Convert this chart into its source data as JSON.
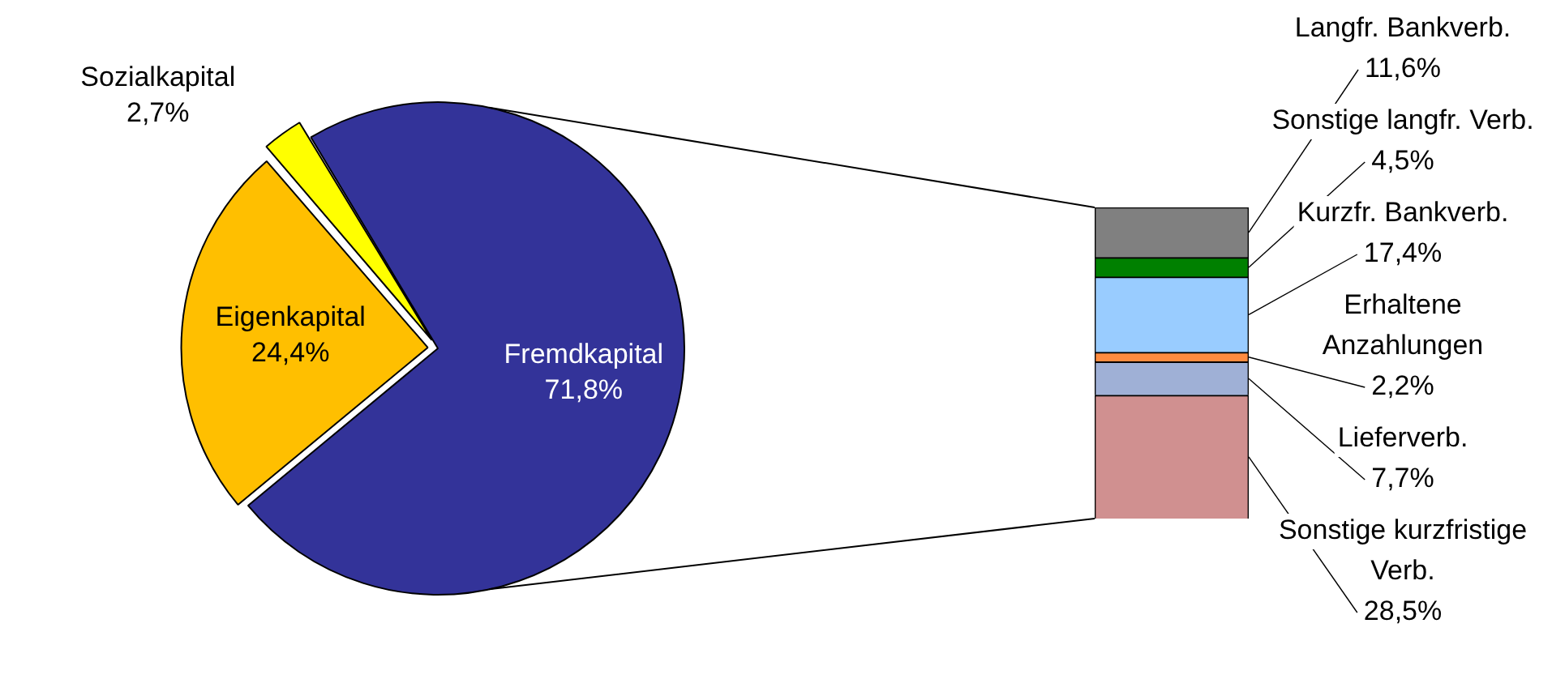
{
  "chart_data": [
    {
      "type": "pie",
      "categories": [
        "Fremdkapital",
        "Eigenkapital",
        "Sozialkapital"
      ],
      "values": [
        71.8,
        24.4,
        2.7
      ],
      "colors": [
        "#333399",
        "#ffbf00",
        "#ffff00"
      ],
      "value_labels": [
        "71,8%",
        "24,4%",
        "2,7%"
      ]
    },
    {
      "type": "bar",
      "stacked": true,
      "categories": [
        null
      ],
      "series": [
        {
          "name": "Sonstige kurzfristige Verb.",
          "color": "#d09090",
          "values": [
            28.5
          ],
          "value_labels": [
            "28,5%"
          ]
        },
        {
          "name": "Lieferverb.",
          "color": "#9fb0d6",
          "values": [
            7.7
          ],
          "value_labels": [
            "7,7%"
          ]
        },
        {
          "name": "Erhaltene Anzahlungen",
          "color": "#ff8c40",
          "values": [
            2.2
          ],
          "value_labels": [
            "2,2%"
          ]
        },
        {
          "name": "Kurzfr. Bankverb.",
          "color": "#99ccff",
          "values": [
            17.4
          ],
          "value_labels": [
            "17,4%"
          ]
        },
        {
          "name": "Sonstige langfr. Verb.",
          "color": "#008000",
          "values": [
            4.5
          ],
          "value_labels": [
            "4,5%"
          ]
        },
        {
          "name": "Langfr. Bankverb.",
          "color": "#808080",
          "values": [
            11.6
          ],
          "value_labels": [
            "11,6%"
          ]
        }
      ]
    }
  ]
}
